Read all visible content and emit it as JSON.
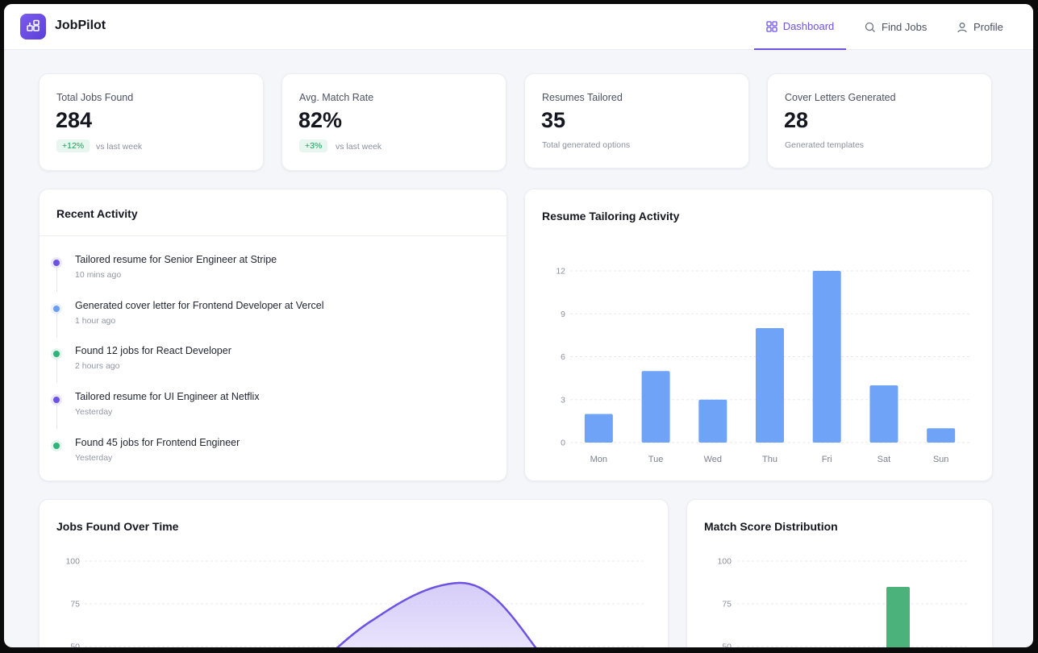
{
  "app": {
    "name": "JobPilot"
  },
  "nav": [
    {
      "label": "Dashboard",
      "icon": "dashboard-icon",
      "active": true
    },
    {
      "label": "Find Jobs",
      "icon": "search-icon",
      "active": false
    },
    {
      "label": "Profile",
      "icon": "user-icon",
      "active": false
    }
  ],
  "stats": [
    {
      "label": "Total Jobs Found",
      "value": "284",
      "badge": "+12%",
      "sub": "vs last week"
    },
    {
      "label": "Avg. Match Rate",
      "value": "82%",
      "badge": "+3%",
      "sub": "vs last week"
    },
    {
      "label": "Resumes Tailored",
      "value": "35",
      "sub": "Total generated options"
    },
    {
      "label": "Cover Letters Generated",
      "value": "28",
      "sub": "Generated templates"
    }
  ],
  "recent_activity": {
    "title": "Recent Activity",
    "items": [
      {
        "text": "Tailored resume for Senior Engineer at Stripe",
        "time": "10 mins ago",
        "color": "#6d52e3"
      },
      {
        "text": "Generated cover letter for Frontend Developer at Vercel",
        "time": "1 hour ago",
        "color": "#6a9ff0"
      },
      {
        "text": "Found 12 jobs for React Developer",
        "time": "2 hours ago",
        "color": "#2fb37a"
      },
      {
        "text": "Tailored resume for UI Engineer at Netflix",
        "time": "Yesterday",
        "color": "#6d52e3"
      },
      {
        "text": "Found 45 jobs for Frontend Engineer",
        "time": "Yesterday",
        "color": "#2fb37a"
      }
    ]
  },
  "colors": {
    "accent": "#6d52e3",
    "bar_blue": "#6ea3f7",
    "bar_green": "#4cb27c",
    "badge_green": "#1e9a5a"
  },
  "charts": {
    "resume_tailoring": {
      "title": "Resume Tailoring Activity",
      "chart_data": {
        "type": "bar",
        "categories": [
          "Mon",
          "Tue",
          "Wed",
          "Thu",
          "Fri",
          "Sat",
          "Sun"
        ],
        "values": [
          2,
          5,
          3,
          8,
          12,
          4,
          1
        ],
        "yticks": [
          0,
          3,
          6,
          9,
          12
        ],
        "ylim": [
          0,
          12
        ],
        "grid": true
      }
    },
    "jobs_over_time": {
      "title": "Jobs Found Over Time",
      "chart_data": {
        "type": "area",
        "yticks": [
          50,
          75,
          100
        ],
        "ylim": [
          0,
          100
        ],
        "grid": true
      }
    },
    "match_distribution": {
      "title": "Match Score Distribution",
      "chart_data": {
        "type": "bar",
        "yticks": [
          50,
          75,
          100
        ],
        "ylim": [
          0,
          100
        ],
        "grid": true
      }
    }
  }
}
